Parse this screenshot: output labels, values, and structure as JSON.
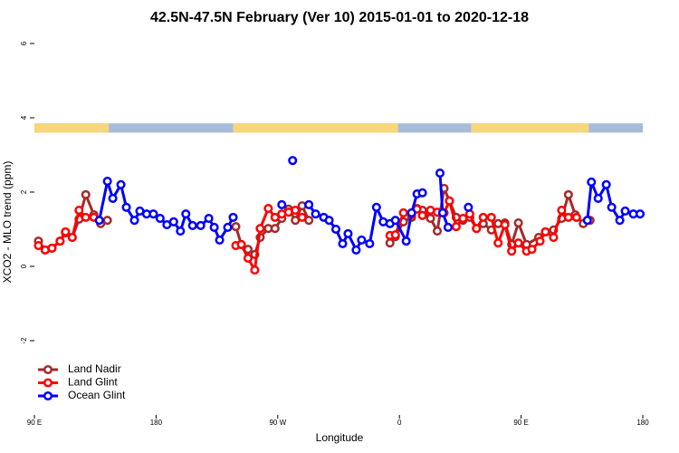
{
  "chart_data": {
    "type": "line",
    "title": "42.5N-47.5N February (Ver 10)   2015-01-01 to 2020-12-18",
    "x_label": "Longitude",
    "y_label": "XCO2 - MLO trend (ppm)",
    "xlim": [
      90,
      540
    ],
    "xticks": [
      {
        "value": 90,
        "label": "90 E"
      },
      {
        "value": 180,
        "label": "180"
      },
      {
        "value": 270,
        "label": "90 W"
      },
      {
        "value": 360,
        "label": "0"
      },
      {
        "value": 450,
        "label": "90 E"
      },
      {
        "value": 540,
        "label": "180"
      }
    ],
    "ylim": [
      -4,
      6.4
    ],
    "yticks": [
      -2,
      0,
      2,
      4,
      6
    ],
    "legend": "bottom-left",
    "strip": {
      "ylim": [
        3.6,
        3.85
      ],
      "ocean_color": "#a7bcd9",
      "land_color": "#f7d67c",
      "land_ranges": [
        [
          90,
          145
        ],
        [
          237,
          359
        ],
        [
          413,
          500
        ]
      ]
    },
    "series": [
      {
        "name": "Land Nadir",
        "color": "#a52a2a",
        "x": [
          93,
          98,
          103,
          109,
          113,
          118,
          123,
          128,
          134,
          139,
          144,
          null,
          239,
          243,
          248,
          253,
          257,
          263,
          268,
          273,
          278,
          283,
          288,
          293,
          null,
          353,
          357,
          363,
          369,
          373,
          377,
          383,
          388,
          393,
          397,
          402,
          407,
          412,
          417,
          422,
          428,
          433,
          438,
          443,
          448,
          454,
          463,
          468,
          474,
          480,
          485,
          490,
          496,
          501
        ],
        "values": [
          0.68,
          0.44,
          0.49,
          0.68,
          0.9,
          0.78,
          1.27,
          1.93,
          1.39,
          1.15,
          1.24,
          null,
          1.07,
          0.59,
          0.46,
          0.32,
          0.78,
          1.02,
          1.02,
          1.29,
          1.54,
          1.24,
          1.63,
          1.24,
          null,
          0.63,
          0.8,
          1.2,
          1.32,
          1.56,
          1.51,
          1.29,
          0.95,
          2.1,
          1.76,
          1.32,
          1.24,
          1.32,
          1.02,
          1.15,
          0.98,
          1.15,
          1.17,
          0.59,
          1.17,
          0.59,
          0.78,
          0.93,
          0.98,
          1.29,
          1.93,
          1.39,
          1.15,
          1.24
        ]
      },
      {
        "name": "Land Glint",
        "color": "#ff0000",
        "x": [
          93,
          98,
          103,
          109,
          113,
          118,
          123,
          128,
          134,
          null,
          239,
          243,
          248,
          253,
          257,
          263,
          268,
          273,
          278,
          283,
          288,
          null,
          353,
          357,
          363,
          369,
          373,
          377,
          383,
          388,
          393,
          397,
          402,
          407,
          412,
          417,
          422,
          428,
          433,
          438,
          443,
          448,
          454,
          458,
          464,
          468,
          474,
          480,
          485,
          491
        ],
        "values": [
          0.56,
          0.44,
          0.49,
          0.68,
          0.93,
          0.78,
          1.51,
          1.32,
          1.32,
          null,
          0.56,
          0.59,
          0.22,
          -0.1,
          1.02,
          1.56,
          1.32,
          1.41,
          1.46,
          1.51,
          1.32,
          null,
          0.83,
          0.85,
          1.44,
          1.39,
          1.54,
          1.37,
          1.51,
          1.46,
          1.44,
          1.76,
          1.07,
          1.29,
          1.41,
          1.02,
          1.32,
          1.32,
          0.63,
          1.12,
          0.41,
          0.63,
          0.41,
          0.46,
          0.68,
          0.93,
          0.78,
          1.51,
          1.32,
          1.32
        ]
      },
      {
        "name": "Ocean Glint",
        "color": "#0000ff",
        "x": [
          138,
          144,
          148,
          154,
          158,
          164,
          168,
          173,
          178,
          183,
          188,
          193,
          198,
          202,
          207,
          213,
          219,
          223,
          227,
          233,
          237,
          null,
          273,
          null,
          281,
          null,
          293,
          298,
          304,
          308,
          313,
          318,
          322,
          328,
          332,
          338,
          343,
          348,
          353,
          357,
          365,
          369,
          373,
          377,
          null,
          390,
          392,
          396,
          null,
          411,
          null,
          499,
          502,
          507,
          513,
          517,
          523,
          527,
          533,
          538
        ],
        "values": [
          1.24,
          2.29,
          1.83,
          2.2,
          1.59,
          1.24,
          1.49,
          1.41,
          1.41,
          1.29,
          1.12,
          1.2,
          0.95,
          1.41,
          1.1,
          1.1,
          1.29,
          1.05,
          0.71,
          1.05,
          1.32,
          null,
          1.66,
          null,
          2.85,
          null,
          1.66,
          1.41,
          1.32,
          1.24,
          1.0,
          0.61,
          0.88,
          0.44,
          0.71,
          0.61,
          1.59,
          1.2,
          1.15,
          1.24,
          0.68,
          1.44,
          1.95,
          1.98,
          null,
          2.51,
          1.44,
          1.05,
          null,
          1.59,
          null,
          1.24,
          2.27,
          1.83,
          2.2,
          1.59,
          1.24,
          1.49,
          1.41,
          1.41
        ]
      }
    ]
  }
}
